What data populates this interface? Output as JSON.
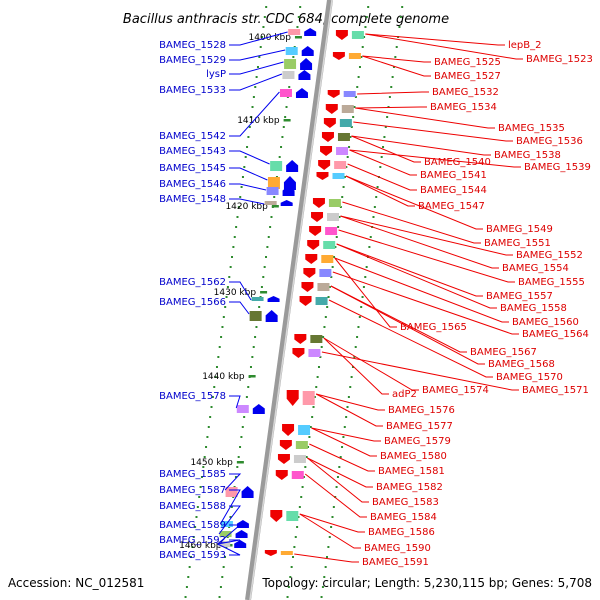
{
  "title": "Bacillus anthracis str. CDC 684, complete genome",
  "accession": "Accession: NC_012581",
  "topology": "Topology: circular; Length: 5,230,115 bp; Genes: 5,708",
  "colors": {
    "backbone": "#a0a0a0",
    "tick": "#228822",
    "forward": "#0000ee",
    "reverse": "#ee0000"
  },
  "scale_marks": [
    {
      "label": "1400 kbp"
    },
    {
      "label": "1410 kbp"
    },
    {
      "label": "1420 kbp"
    },
    {
      "label": "1430 kbp"
    },
    {
      "label": "1440 kbp"
    },
    {
      "label": "1450 kbp"
    },
    {
      "label": "1460 kbp"
    }
  ],
  "left_genes": [
    {
      "label": "BAMEG_1528"
    },
    {
      "label": "BAMEG_1529"
    },
    {
      "label": "lysP"
    },
    {
      "label": "BAMEG_1533"
    },
    {
      "label": "BAMEG_1542"
    },
    {
      "label": "BAMEG_1543"
    },
    {
      "label": "BAMEG_1545"
    },
    {
      "label": "BAMEG_1546"
    },
    {
      "label": "BAMEG_1548"
    },
    {
      "label": "BAMEG_1562"
    },
    {
      "label": "BAMEG_1566"
    },
    {
      "label": "BAMEG_1578"
    },
    {
      "label": "BAMEG_1585"
    },
    {
      "label": "BAMEG_1587"
    },
    {
      "label": "BAMEG_1588"
    },
    {
      "label": "BAMEG_1589"
    },
    {
      "label": "BAMEG_1592"
    },
    {
      "label": "BAMEG_1593"
    }
  ],
  "right_genes": [
    {
      "label": "lepB_2"
    },
    {
      "label": "BAMEG_1523"
    },
    {
      "label": "BAMEG_1525"
    },
    {
      "label": "BAMEG_1527"
    },
    {
      "label": "BAMEG_1532"
    },
    {
      "label": "BAMEG_1534"
    },
    {
      "label": "BAMEG_1535"
    },
    {
      "label": "BAMEG_1536"
    },
    {
      "label": "BAMEG_1538"
    },
    {
      "label": "BAMEG_1540"
    },
    {
      "label": "BAMEG_1539"
    },
    {
      "label": "BAMEG_1541"
    },
    {
      "label": "BAMEG_1544"
    },
    {
      "label": "BAMEG_1547"
    },
    {
      "label": "BAMEG_1549"
    },
    {
      "label": "BAMEG_1551"
    },
    {
      "label": "BAMEG_1552"
    },
    {
      "label": "BAMEG_1554"
    },
    {
      "label": "BAMEG_1555"
    },
    {
      "label": "BAMEG_1557"
    },
    {
      "label": "BAMEG_1558"
    },
    {
      "label": "BAMEG_1560"
    },
    {
      "label": "BAMEG_1565"
    },
    {
      "label": "BAMEG_1564"
    },
    {
      "label": "BAMEG_1567"
    },
    {
      "label": "BAMEG_1568"
    },
    {
      "label": "BAMEG_1570"
    },
    {
      "label": "adP2"
    },
    {
      "label": "BAMEG_1574"
    },
    {
      "label": "BAMEG_1571"
    },
    {
      "label": "BAMEG_1576"
    },
    {
      "label": "BAMEG_1577"
    },
    {
      "label": "BAMEG_1579"
    },
    {
      "label": "BAMEG_1580"
    },
    {
      "label": "BAMEG_1581"
    },
    {
      "label": "BAMEG_1582"
    },
    {
      "label": "BAMEG_1583"
    },
    {
      "label": "BAMEG_1584"
    },
    {
      "label": "BAMEG_1586"
    },
    {
      "label": "BAMEG_1590"
    },
    {
      "label": "BAMEG_1591"
    }
  ]
}
